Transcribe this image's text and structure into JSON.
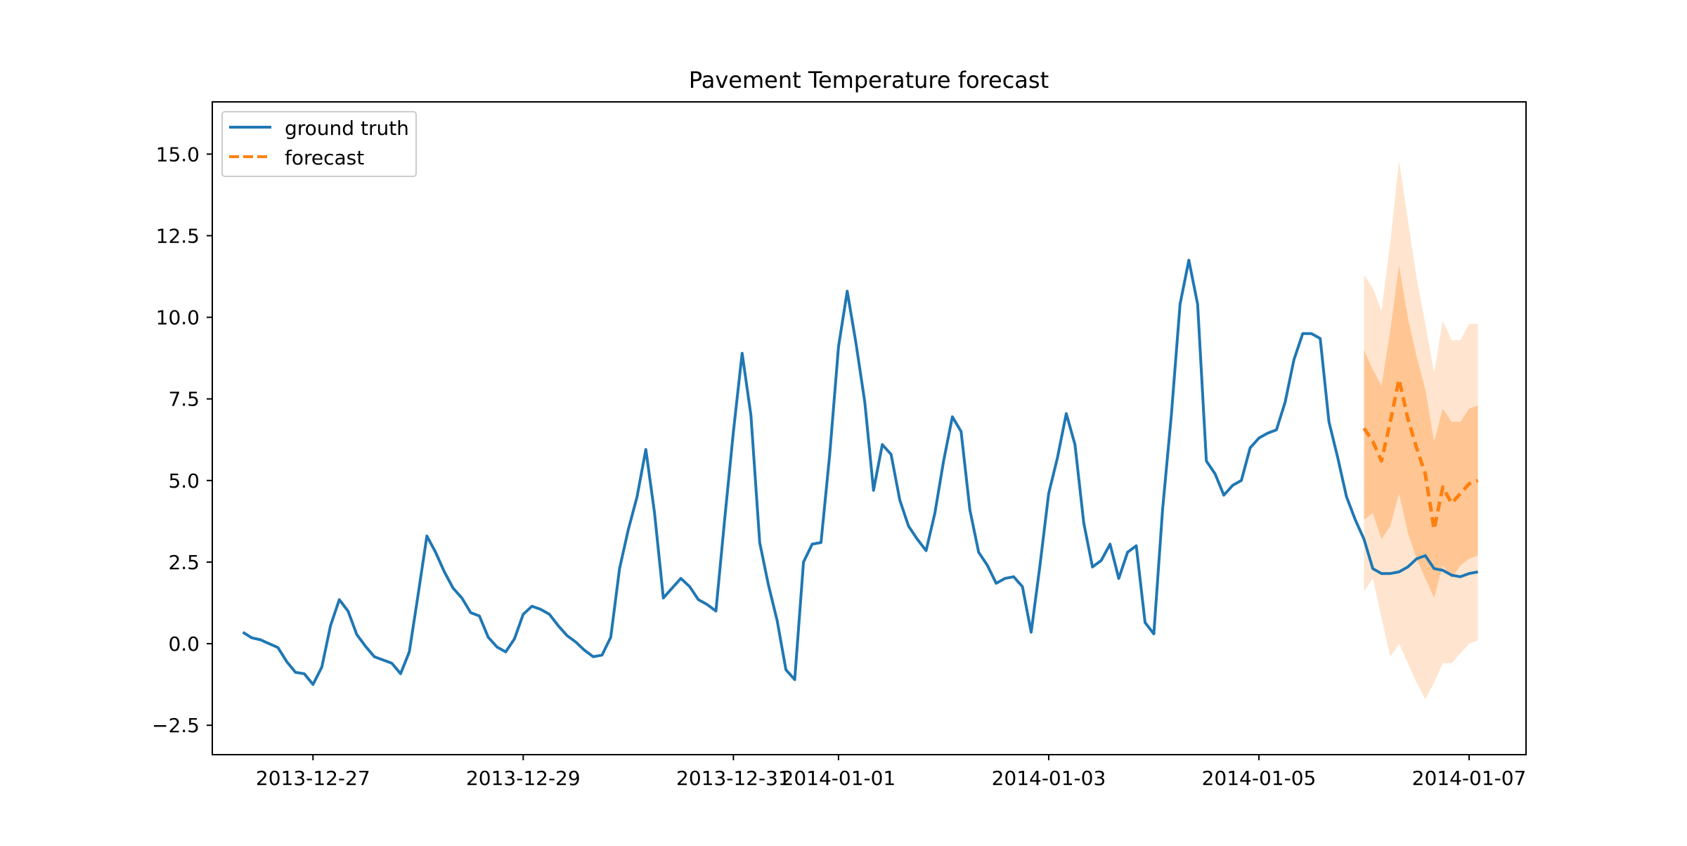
{
  "chart_data": {
    "type": "line",
    "title": "Pavement Temperature forecast",
    "xlabel": "",
    "ylabel": "",
    "x_axis_type": "datetime",
    "xlim": [
      "2013-12-26T01:00",
      "2014-01-07T13:00"
    ],
    "ylim": [
      -3.4,
      16.6
    ],
    "x_ticks": [
      "2013-12-27",
      "2013-12-29",
      "2013-12-31",
      "2014-01-01",
      "2014-01-03",
      "2014-01-05",
      "2014-01-07"
    ],
    "y_ticks": [
      -2.5,
      0.0,
      2.5,
      5.0,
      7.5,
      10.0,
      12.5,
      15.0
    ],
    "y_tick_labels": [
      "−2.5",
      "0.0",
      "2.5",
      "5.0",
      "7.5",
      "10.0",
      "12.5",
      "15.0"
    ],
    "grid": false,
    "legend": {
      "placement": "upper-left",
      "entries": [
        "ground truth",
        "forecast"
      ]
    },
    "colors": {
      "ground_truth": "#1f77b4",
      "forecast": "#ff7f0e"
    },
    "series": [
      {
        "name": "ground truth",
        "style": "solid",
        "x": [
          "2013-12-26T08:00",
          "2013-12-26T10:00",
          "2013-12-26T12:00",
          "2013-12-26T14:00",
          "2013-12-26T16:00",
          "2013-12-26T18:00",
          "2013-12-26T20:00",
          "2013-12-26T22:00",
          "2013-12-27T00:00",
          "2013-12-27T02:00",
          "2013-12-27T04:00",
          "2013-12-27T06:00",
          "2013-12-27T08:00",
          "2013-12-27T10:00",
          "2013-12-27T12:00",
          "2013-12-27T14:00",
          "2013-12-27T16:00",
          "2013-12-27T18:00",
          "2013-12-27T20:00",
          "2013-12-27T22:00",
          "2013-12-28T00:00",
          "2013-12-28T02:00",
          "2013-12-28T04:00",
          "2013-12-28T06:00",
          "2013-12-28T08:00",
          "2013-12-28T10:00",
          "2013-12-28T12:00",
          "2013-12-28T14:00",
          "2013-12-28T16:00",
          "2013-12-28T18:00",
          "2013-12-28T20:00",
          "2013-12-28T22:00",
          "2013-12-29T00:00",
          "2013-12-29T02:00",
          "2013-12-29T04:00",
          "2013-12-29T06:00",
          "2013-12-29T08:00",
          "2013-12-29T10:00",
          "2013-12-29T12:00",
          "2013-12-29T14:00",
          "2013-12-29T16:00",
          "2013-12-29T18:00",
          "2013-12-29T20:00",
          "2013-12-29T22:00",
          "2013-12-30T00:00",
          "2013-12-30T02:00",
          "2013-12-30T04:00",
          "2013-12-30T06:00",
          "2013-12-30T08:00",
          "2013-12-30T10:00",
          "2013-12-30T12:00",
          "2013-12-30T14:00",
          "2013-12-30T16:00",
          "2013-12-30T18:00",
          "2013-12-30T20:00",
          "2013-12-30T22:00",
          "2013-12-31T00:00",
          "2013-12-31T02:00",
          "2013-12-31T04:00",
          "2013-12-31T06:00",
          "2013-12-31T08:00",
          "2013-12-31T10:00",
          "2013-12-31T12:00",
          "2013-12-31T14:00",
          "2013-12-31T16:00",
          "2013-12-31T18:00",
          "2013-12-31T20:00",
          "2013-12-31T22:00",
          "2014-01-01T00:00",
          "2014-01-01T02:00",
          "2014-01-01T04:00",
          "2014-01-01T06:00",
          "2014-01-01T08:00",
          "2014-01-01T10:00",
          "2014-01-01T12:00",
          "2014-01-01T14:00",
          "2014-01-01T16:00",
          "2014-01-01T18:00",
          "2014-01-01T20:00",
          "2014-01-01T22:00",
          "2014-01-02T00:00",
          "2014-01-02T02:00",
          "2014-01-02T04:00",
          "2014-01-02T06:00",
          "2014-01-02T08:00",
          "2014-01-02T10:00",
          "2014-01-02T12:00",
          "2014-01-02T14:00",
          "2014-01-02T16:00",
          "2014-01-02T18:00",
          "2014-01-02T20:00",
          "2014-01-02T22:00",
          "2014-01-03T00:00",
          "2014-01-03T02:00",
          "2014-01-03T04:00",
          "2014-01-03T06:00",
          "2014-01-03T08:00",
          "2014-01-03T10:00",
          "2014-01-03T12:00",
          "2014-01-03T14:00",
          "2014-01-03T16:00",
          "2014-01-03T18:00",
          "2014-01-03T20:00",
          "2014-01-03T22:00",
          "2014-01-04T00:00",
          "2014-01-04T02:00",
          "2014-01-04T04:00",
          "2014-01-04T06:00",
          "2014-01-04T08:00",
          "2014-01-04T10:00",
          "2014-01-04T12:00",
          "2014-01-04T14:00",
          "2014-01-04T16:00",
          "2014-01-04T18:00",
          "2014-01-04T20:00",
          "2014-01-04T22:00",
          "2014-01-05T00:00",
          "2014-01-05T02:00",
          "2014-01-05T04:00",
          "2014-01-05T06:00",
          "2014-01-05T08:00",
          "2014-01-05T10:00",
          "2014-01-05T12:00",
          "2014-01-05T14:00",
          "2014-01-05T16:00",
          "2014-01-05T18:00",
          "2014-01-05T20:00",
          "2014-01-05T22:00",
          "2014-01-06T00:00",
          "2014-01-06T02:00",
          "2014-01-06T04:00",
          "2014-01-06T06:00",
          "2014-01-06T08:00",
          "2014-01-06T10:00",
          "2014-01-06T12:00",
          "2014-01-06T14:00",
          "2014-01-06T16:00",
          "2014-01-06T18:00",
          "2014-01-06T20:00",
          "2014-01-06T22:00",
          "2014-01-07T00:00",
          "2014-01-07T02:00"
        ],
        "values": [
          0.35,
          0.18,
          0.12,
          0.0,
          -0.12,
          -0.55,
          -0.88,
          -0.92,
          -1.25,
          -0.72,
          0.55,
          1.35,
          1.0,
          0.28,
          -0.08,
          -0.4,
          -0.5,
          -0.6,
          -0.92,
          -0.25,
          1.5,
          3.3,
          2.8,
          2.2,
          1.7,
          1.4,
          0.95,
          0.85,
          0.2,
          -0.1,
          -0.25,
          0.15,
          0.9,
          1.15,
          1.05,
          0.9,
          0.55,
          0.25,
          0.05,
          -0.2,
          -0.4,
          -0.35,
          0.2,
          2.3,
          3.5,
          4.5,
          5.95,
          4.0,
          1.4,
          1.7,
          2.0,
          1.75,
          1.35,
          1.2,
          1.0,
          3.8,
          6.5,
          8.9,
          7.0,
          3.1,
          1.8,
          0.7,
          -0.8,
          -1.1,
          2.5,
          3.05,
          3.1,
          5.8,
          9.1,
          10.8,
          9.2,
          7.4,
          4.7,
          6.1,
          5.8,
          4.4,
          3.6,
          3.2,
          2.85,
          4.0,
          5.6,
          6.95,
          6.5,
          4.1,
          2.8,
          2.4,
          1.85,
          2.0,
          2.05,
          1.75,
          0.35,
          2.4,
          4.6,
          5.7,
          7.05,
          6.1,
          3.7,
          2.35,
          2.55,
          3.05,
          2.0,
          2.8,
          3.0,
          0.65,
          0.3,
          4.1,
          7.0,
          10.4,
          11.75,
          10.4,
          5.6,
          5.2,
          4.55,
          4.85,
          5.0,
          6.0,
          6.3,
          6.45,
          6.55,
          7.4,
          8.7,
          9.5,
          9.5,
          9.35,
          6.8,
          5.7,
          4.5,
          3.8,
          3.2,
          2.3,
          2.15,
          2.15,
          2.2,
          2.35,
          2.6,
          2.7,
          2.3,
          2.25,
          2.1,
          2.05,
          2.15,
          2.2
        ]
      },
      {
        "name": "forecast",
        "style": "dashed",
        "x": [
          "2014-01-06T00:00",
          "2014-01-06T02:00",
          "2014-01-06T04:00",
          "2014-01-06T06:00",
          "2014-01-06T08:00",
          "2014-01-06T10:00",
          "2014-01-06T12:00",
          "2014-01-06T14:00",
          "2014-01-06T16:00",
          "2014-01-06T18:00",
          "2014-01-06T20:00",
          "2014-01-06T22:00",
          "2014-01-07T00:00",
          "2014-01-07T02:00"
        ],
        "values": [
          6.6,
          6.2,
          5.6,
          6.8,
          8.1,
          6.9,
          6.0,
          5.2,
          3.5,
          4.8,
          4.3,
          4.6,
          4.9,
          5.0
        ],
        "band_outer": {
          "lower": [
            1.6,
            2.0,
            0.8,
            -0.4,
            0.0,
            -0.6,
            -1.2,
            -1.7,
            -1.2,
            -0.6,
            -0.6,
            -0.3,
            0.0,
            0.1
          ],
          "upper": [
            11.3,
            10.9,
            10.2,
            12.3,
            14.8,
            13.0,
            11.2,
            9.8,
            8.3,
            9.9,
            9.3,
            9.3,
            9.8,
            9.8
          ]
        },
        "band_inner": {
          "lower": [
            3.8,
            4.0,
            3.2,
            3.6,
            4.6,
            3.4,
            2.6,
            2.0,
            1.4,
            2.4,
            2.0,
            2.4,
            2.6,
            2.7
          ],
          "upper": [
            9.0,
            8.4,
            7.9,
            9.6,
            11.6,
            10.0,
            8.8,
            7.8,
            6.2,
            7.2,
            6.8,
            6.8,
            7.2,
            7.3
          ]
        }
      }
    ]
  }
}
